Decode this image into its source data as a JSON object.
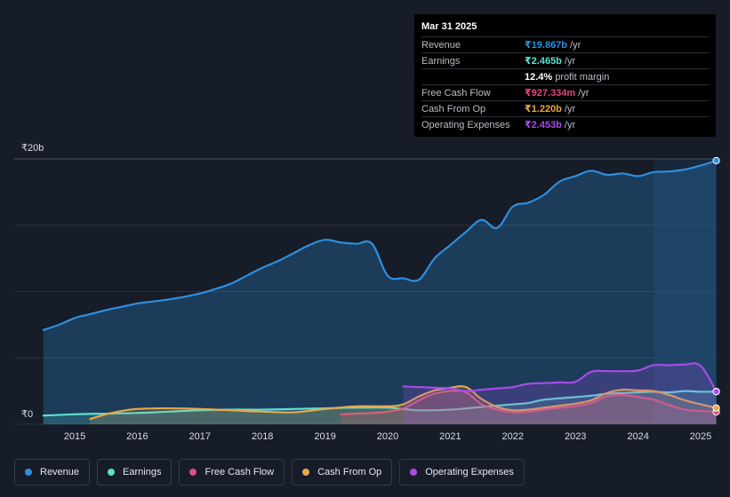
{
  "tooltip": {
    "date": "Mar 31 2025",
    "rows": [
      {
        "label": "Revenue",
        "value": "₹19.867b",
        "unit": "/yr",
        "color": "#2d8fe0"
      },
      {
        "label": "Earnings",
        "value": "₹2.465b",
        "unit": "/yr",
        "color": "#5ce0d2"
      },
      {
        "label": "",
        "value": "12.4%",
        "unit": "profit margin",
        "color": "#ffffff"
      },
      {
        "label": "Free Cash Flow",
        "value": "₹927.334m",
        "unit": "/yr",
        "color": "#e0457e"
      },
      {
        "label": "Cash From Op",
        "value": "₹1.220b",
        "unit": "/yr",
        "color": "#e8a84a"
      },
      {
        "label": "Operating Expenses",
        "value": "₹2.453b",
        "unit": "/yr",
        "color": "#a64ce8"
      }
    ]
  },
  "legend": [
    {
      "label": "Revenue",
      "color": "#2d8fe0"
    },
    {
      "label": "Earnings",
      "color": "#5ce0d2"
    },
    {
      "label": "Free Cash Flow",
      "color": "#d6527e"
    },
    {
      "label": "Cash From Op",
      "color": "#e8a84a"
    },
    {
      "label": "Operating Expenses",
      "color": "#a64ce8"
    }
  ],
  "chart_data": {
    "type": "area",
    "title": "",
    "xlabel": "",
    "ylabel": "",
    "unit": "₹ billions",
    "y_tick_labels": {
      "top": "₹20b",
      "bottom": "₹0"
    },
    "ylim": [
      0,
      20
    ],
    "xlim": [
      2014.5,
      2025.25
    ],
    "x_ticks": [
      "2015",
      "2016",
      "2017",
      "2018",
      "2019",
      "2020",
      "2021",
      "2022",
      "2023",
      "2024",
      "2025"
    ],
    "x_tick_values": [
      2015,
      2016,
      2017,
      2018,
      2019,
      2020,
      2021,
      2022,
      2023,
      2024,
      2025
    ],
    "highlight_range": [
      2024.25,
      2025.25
    ],
    "series": [
      {
        "name": "Revenue",
        "color": "#2d8fe0",
        "fill": true,
        "x": [
          2014.5,
          2014.75,
          2015.0,
          2015.25,
          2015.5,
          2015.75,
          2016.0,
          2016.25,
          2016.5,
          2016.75,
          2017.0,
          2017.25,
          2017.5,
          2017.75,
          2018.0,
          2018.25,
          2018.5,
          2018.75,
          2019.0,
          2019.25,
          2019.5,
          2019.75,
          2020.0,
          2020.25,
          2020.5,
          2020.75,
          2021.0,
          2021.25,
          2021.5,
          2021.75,
          2022.0,
          2022.25,
          2022.5,
          2022.75,
          2023.0,
          2023.25,
          2023.5,
          2023.75,
          2024.0,
          2024.25,
          2024.5,
          2024.75,
          2025.0,
          2025.25
        ],
        "values": [
          7.1,
          7.5,
          8.0,
          8.3,
          8.6,
          8.85,
          9.1,
          9.25,
          9.4,
          9.6,
          9.85,
          10.2,
          10.6,
          11.2,
          11.8,
          12.3,
          12.9,
          13.5,
          13.9,
          13.7,
          13.6,
          13.6,
          11.2,
          11.0,
          10.9,
          12.5,
          13.5,
          14.5,
          15.4,
          14.8,
          16.4,
          16.7,
          17.3,
          18.3,
          18.7,
          19.1,
          18.8,
          18.9,
          18.7,
          19.0,
          19.05,
          19.2,
          19.5,
          19.867
        ]
      },
      {
        "name": "Earnings",
        "color": "#5ce0d2",
        "fill": true,
        "x": [
          2014.5,
          2015.0,
          2015.5,
          2016.0,
          2016.5,
          2017.0,
          2017.5,
          2018.0,
          2018.5,
          2019.0,
          2019.5,
          2020.0,
          2020.25,
          2020.5,
          2021.0,
          2021.5,
          2022.0,
          2022.25,
          2022.5,
          2023.0,
          2023.25,
          2023.5,
          2023.75,
          2024.0,
          2024.25,
          2024.5,
          2024.75,
          2025.0,
          2025.25
        ],
        "values": [
          0.65,
          0.75,
          0.8,
          0.85,
          0.95,
          1.05,
          1.1,
          1.1,
          1.15,
          1.2,
          1.25,
          1.25,
          1.15,
          1.05,
          1.1,
          1.3,
          1.5,
          1.6,
          1.85,
          2.05,
          2.15,
          2.3,
          2.35,
          2.4,
          2.45,
          2.4,
          2.5,
          2.45,
          2.465
        ]
      },
      {
        "name": "Free Cash Flow",
        "color": "#d6527e",
        "fill": true,
        "x": [
          2019.25,
          2019.5,
          2019.75,
          2020.0,
          2020.25,
          2020.5,
          2020.75,
          2021.0,
          2021.25,
          2021.5,
          2021.75,
          2022.0,
          2022.25,
          2022.5,
          2022.75,
          2023.0,
          2023.25,
          2023.5,
          2023.75,
          2024.0,
          2024.25,
          2024.5,
          2024.75,
          2025.0,
          2025.25
        ],
        "values": [
          0.75,
          0.8,
          0.85,
          0.95,
          1.2,
          1.8,
          2.3,
          2.5,
          2.4,
          1.5,
          1.1,
          0.9,
          0.95,
          1.1,
          1.25,
          1.35,
          1.6,
          2.1,
          2.2,
          2.05,
          1.85,
          1.45,
          1.1,
          1.0,
          0.927
        ]
      },
      {
        "name": "Cash From Op",
        "color": "#e8a84a",
        "fill": true,
        "x": [
          2015.25,
          2015.5,
          2015.75,
          2016.0,
          2016.5,
          2017.0,
          2017.5,
          2018.0,
          2018.5,
          2019.0,
          2019.5,
          2020.0,
          2020.25,
          2020.5,
          2020.75,
          2021.0,
          2021.25,
          2021.5,
          2021.75,
          2022.0,
          2022.25,
          2022.5,
          2022.75,
          2023.0,
          2023.25,
          2023.5,
          2023.75,
          2024.0,
          2024.25,
          2024.5,
          2024.75,
          2025.0,
          2025.25
        ],
        "values": [
          0.4,
          0.75,
          1.0,
          1.15,
          1.2,
          1.15,
          1.05,
          0.95,
          0.9,
          1.15,
          1.35,
          1.35,
          1.5,
          2.1,
          2.55,
          2.75,
          2.8,
          1.9,
          1.3,
          1.05,
          1.1,
          1.25,
          1.4,
          1.55,
          1.8,
          2.35,
          2.6,
          2.55,
          2.5,
          2.2,
          1.8,
          1.5,
          1.22
        ]
      },
      {
        "name": "Operating Expenses",
        "color": "#a64ce8",
        "fill": true,
        "x": [
          2020.25,
          2020.5,
          2020.75,
          2021.0,
          2021.25,
          2021.5,
          2021.75,
          2022.0,
          2022.25,
          2022.5,
          2022.75,
          2023.0,
          2023.25,
          2023.5,
          2023.75,
          2024.0,
          2024.25,
          2024.5,
          2024.75,
          2025.0,
          2025.25
        ],
        "values": [
          2.85,
          2.8,
          2.75,
          2.7,
          2.5,
          2.6,
          2.7,
          2.8,
          3.05,
          3.1,
          3.15,
          3.2,
          3.95,
          4.0,
          4.0,
          4.05,
          4.45,
          4.45,
          4.5,
          4.4,
          2.453
        ]
      }
    ]
  }
}
